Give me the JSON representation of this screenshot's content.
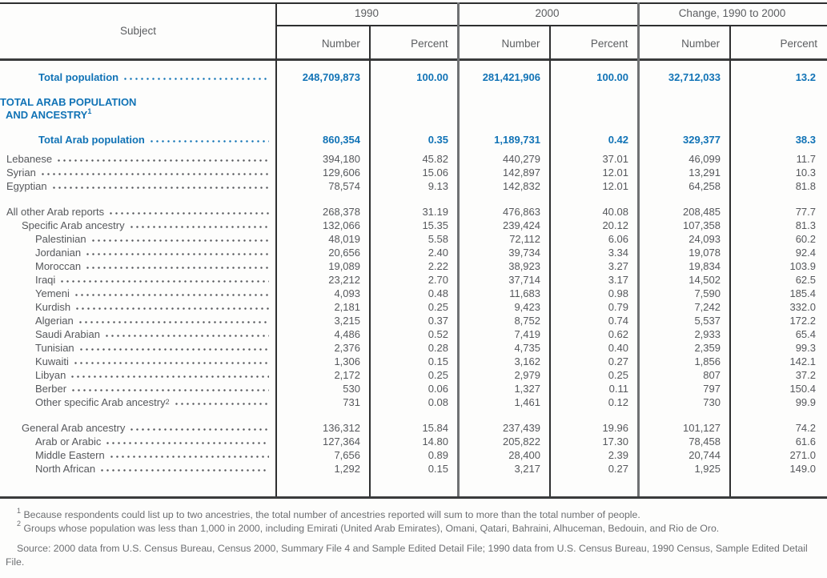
{
  "colors": {
    "accent_blue": "#1173b6",
    "body_text_gray": "#56585c",
    "footnote_gray": "#6c6e71",
    "rule_dark": "#2e2f30",
    "rule_group_gray": "#6f7173"
  },
  "header": {
    "subject_label": "Subject",
    "groups": [
      {
        "label": "1990",
        "columns": [
          "Number",
          "Percent"
        ]
      },
      {
        "label": "2000",
        "columns": [
          "Number",
          "Percent"
        ]
      },
      {
        "label": "Change, 1990 to 2000",
        "columns": [
          "Number",
          "Percent"
        ]
      }
    ]
  },
  "table": {
    "rows": [
      {
        "type": "total",
        "label": "Total population",
        "values": [
          "248,709,873",
          "100.00",
          "281,421,906",
          "100.00",
          "32,712,033",
          "13.2"
        ]
      },
      {
        "type": "section",
        "label_lines": [
          "TOTAL ARAB POPULATION",
          "AND ANCESTRY"
        ],
        "sup": "1"
      },
      {
        "type": "total",
        "label": "Total Arab population",
        "values": [
          "860,354",
          "0.35",
          "1,189,731",
          "0.42",
          "329,377",
          "38.3"
        ]
      },
      {
        "type": "data",
        "indent": 0,
        "label": "Lebanese",
        "values": [
          "394,180",
          "45.82",
          "440,279",
          "37.01",
          "46,099",
          "11.7"
        ]
      },
      {
        "type": "data",
        "indent": 0,
        "label": "Syrian",
        "values": [
          "129,606",
          "15.06",
          "142,897",
          "12.01",
          "13,291",
          "10.3"
        ]
      },
      {
        "type": "data",
        "indent": 0,
        "label": "Egyptian",
        "values": [
          "78,574",
          "9.13",
          "142,832",
          "12.01",
          "64,258",
          "81.8"
        ]
      },
      {
        "type": "data",
        "indent": 0,
        "label": "All other Arab reports",
        "values": [
          "268,378",
          "31.19",
          "476,863",
          "40.08",
          "208,485",
          "77.7"
        ]
      },
      {
        "type": "data",
        "indent": 1,
        "label": "Specific Arab ancestry",
        "values": [
          "132,066",
          "15.35",
          "239,424",
          "20.12",
          "107,358",
          "81.3"
        ]
      },
      {
        "type": "data",
        "indent": 2,
        "label": "Palestinian",
        "values": [
          "48,019",
          "5.58",
          "72,112",
          "6.06",
          "24,093",
          "60.2"
        ]
      },
      {
        "type": "data",
        "indent": 2,
        "label": "Jordanian",
        "values": [
          "20,656",
          "2.40",
          "39,734",
          "3.34",
          "19,078",
          "92.4"
        ]
      },
      {
        "type": "data",
        "indent": 2,
        "label": "Moroccan",
        "values": [
          "19,089",
          "2.22",
          "38,923",
          "3.27",
          "19,834",
          "103.9"
        ]
      },
      {
        "type": "data",
        "indent": 2,
        "label": "Iraqi",
        "values": [
          "23,212",
          "2.70",
          "37,714",
          "3.17",
          "14,502",
          "62.5"
        ]
      },
      {
        "type": "data",
        "indent": 2,
        "label": "Yemeni",
        "values": [
          "4,093",
          "0.48",
          "11,683",
          "0.98",
          "7,590",
          "185.4"
        ]
      },
      {
        "type": "data",
        "indent": 2,
        "label": "Kurdish",
        "values": [
          "2,181",
          "0.25",
          "9,423",
          "0.79",
          "7,242",
          "332.0"
        ]
      },
      {
        "type": "data",
        "indent": 2,
        "label": "Algerian",
        "values": [
          "3,215",
          "0.37",
          "8,752",
          "0.74",
          "5,537",
          "172.2"
        ]
      },
      {
        "type": "data",
        "indent": 2,
        "label": "Saudi Arabian",
        "values": [
          "4,486",
          "0.52",
          "7,419",
          "0.62",
          "2,933",
          "65.4"
        ]
      },
      {
        "type": "data",
        "indent": 2,
        "label": "Tunisian",
        "values": [
          "2,376",
          "0.28",
          "4,735",
          "0.40",
          "2,359",
          "99.3"
        ]
      },
      {
        "type": "data",
        "indent": 2,
        "label": "Kuwaiti",
        "values": [
          "1,306",
          "0.15",
          "3,162",
          "0.27",
          "1,856",
          "142.1"
        ]
      },
      {
        "type": "data",
        "indent": 2,
        "label": "Libyan",
        "values": [
          "2,172",
          "0.25",
          "2,979",
          "0.25",
          "807",
          "37.2"
        ]
      },
      {
        "type": "data",
        "indent": 2,
        "label": "Berber",
        "values": [
          "530",
          "0.06",
          "1,327",
          "0.11",
          "797",
          "150.4"
        ]
      },
      {
        "type": "data",
        "indent": 2,
        "label": "Other specific Arab ancestry",
        "sup": "2",
        "values": [
          "731",
          "0.08",
          "1,461",
          "0.12",
          "730",
          "99.9"
        ]
      },
      {
        "type": "data",
        "indent": 1,
        "label": "General Arab ancestry",
        "values": [
          "136,312",
          "15.84",
          "237,439",
          "19.96",
          "101,127",
          "74.2"
        ]
      },
      {
        "type": "data",
        "indent": 2,
        "label": "Arab or Arabic",
        "values": [
          "127,364",
          "14.80",
          "205,822",
          "17.30",
          "78,458",
          "61.6"
        ]
      },
      {
        "type": "data",
        "indent": 2,
        "label": "Middle Eastern",
        "values": [
          "7,656",
          "0.89",
          "28,400",
          "2.39",
          "20,744",
          "271.0"
        ]
      },
      {
        "type": "data",
        "indent": 2,
        "label": "North African",
        "values": [
          "1,292",
          "0.15",
          "3,217",
          "0.27",
          "1,925",
          "149.0"
        ]
      }
    ]
  },
  "footnotes": [
    {
      "marker": "1",
      "text": "Because respondents could list up to two ancestries, the total number of ancestries reported will sum to more than the total number of people."
    },
    {
      "marker": "2",
      "text": "Groups whose population was less than 1,000 in 2000, including Emirati (United Arab Emirates), Omani, Qatari, Bahraini, Alhuceman, Bedouin, and Rio de Oro."
    }
  ],
  "source": "Source: 2000 data from U.S. Census Bureau, Census 2000, Summary File 4 and Sample Edited Detail File; 1990 data from U.S. Census Bureau, 1990 Census, Sample Edited Detail File."
}
